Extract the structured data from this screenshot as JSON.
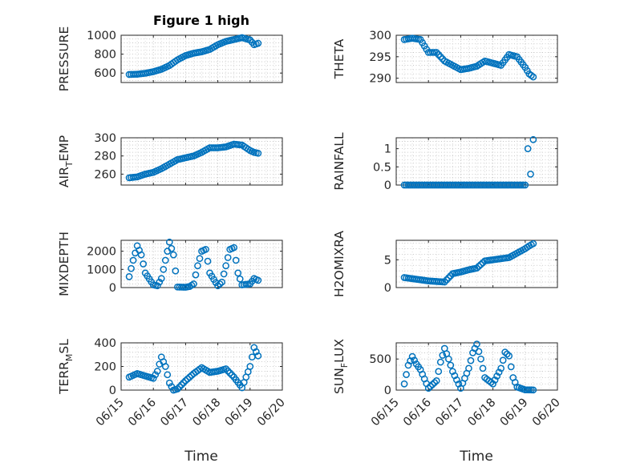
{
  "title": "Figure 1 high",
  "xlabel": "Time",
  "x_tick_labels": [
    "06/15",
    "06/16",
    "06/17",
    "06/18",
    "06/19",
    "06/20"
  ],
  "colors": {
    "marker": "#0072BD",
    "axes": "#262626",
    "grid": "#bcbcbc"
  },
  "chart_data": [
    {
      "type": "scatter",
      "ylabel": "PRESSURE",
      "xlim": [
        "06/15",
        "06/20"
      ],
      "ylim": [
        500,
        1000
      ],
      "yticks": [
        600,
        800,
        1000
      ],
      "grid": true,
      "points": [
        [
          "06/15 06:00",
          585
        ],
        [
          "06/15 12:00",
          588
        ],
        [
          "06/15 18:00",
          598
        ],
        [
          "06/16 00:00",
          615
        ],
        [
          "06/16 06:00",
          640
        ],
        [
          "06/16 12:00",
          680
        ],
        [
          "06/16 18:00",
          740
        ],
        [
          "06/17 00:00",
          785
        ],
        [
          "06/17 06:00",
          810
        ],
        [
          "06/17 12:00",
          825
        ],
        [
          "06/17 18:00",
          850
        ],
        [
          "06/18 00:00",
          900
        ],
        [
          "06/18 06:00",
          935
        ],
        [
          "06/18 12:00",
          955
        ],
        [
          "06/18 18:00",
          975
        ],
        [
          "06/19 00:00",
          950
        ],
        [
          "06/19 03:00",
          900
        ],
        [
          "06/19 06:00",
          915
        ]
      ]
    },
    {
      "type": "scatter",
      "ylabel": "THETA",
      "xlim": [
        "06/15",
        "06/20"
      ],
      "ylim": [
        289,
        300
      ],
      "yticks": [
        290,
        295,
        300
      ],
      "grid": true,
      "points": [
        [
          "06/15 06:00",
          299.0
        ],
        [
          "06/15 12:00",
          299.3
        ],
        [
          "06/15 18:00",
          299.0
        ],
        [
          "06/16 00:00",
          296.0
        ],
        [
          "06/16 06:00",
          296.0
        ],
        [
          "06/16 12:00",
          294.0
        ],
        [
          "06/16 18:00",
          293.0
        ],
        [
          "06/17 00:00",
          292.0
        ],
        [
          "06/17 06:00",
          292.3
        ],
        [
          "06/17 12:00",
          292.8
        ],
        [
          "06/17 18:00",
          294.0
        ],
        [
          "06/18 00:00",
          293.5
        ],
        [
          "06/18 06:00",
          293.0
        ],
        [
          "06/18 12:00",
          295.5
        ],
        [
          "06/18 18:00",
          295.0
        ],
        [
          "06/19 00:00",
          292.5
        ],
        [
          "06/19 03:00",
          291.0
        ],
        [
          "06/19 06:00",
          290.3
        ]
      ]
    },
    {
      "type": "scatter",
      "ylabel": "AIR_TEMP",
      "xlim": [
        "06/15",
        "06/20"
      ],
      "ylim": [
        248,
        300
      ],
      "yticks": [
        260,
        280,
        300
      ],
      "grid": true,
      "points": [
        [
          "06/15 06:00",
          256
        ],
        [
          "06/15 12:00",
          257
        ],
        [
          "06/15 18:00",
          260
        ],
        [
          "06/16 00:00",
          262
        ],
        [
          "06/16 06:00",
          266
        ],
        [
          "06/16 12:00",
          271
        ],
        [
          "06/16 18:00",
          276
        ],
        [
          "06/17 00:00",
          278
        ],
        [
          "06/17 06:00",
          280
        ],
        [
          "06/17 12:00",
          284
        ],
        [
          "06/17 18:00",
          289
        ],
        [
          "06/18 00:00",
          289
        ],
        [
          "06/18 06:00",
          290
        ],
        [
          "06/18 12:00",
          293
        ],
        [
          "06/18 18:00",
          292
        ],
        [
          "06/19 00:00",
          286
        ],
        [
          "06/19 03:00",
          284
        ],
        [
          "06/19 06:00",
          283
        ]
      ]
    },
    {
      "type": "scatter",
      "ylabel": "RAINFALL",
      "xlim": [
        "06/15",
        "06/20"
      ],
      "ylim": [
        0,
        1.3
      ],
      "yticks": [
        0,
        0.5,
        1
      ],
      "grid": true,
      "points": [
        [
          "06/15 06:00",
          0
        ],
        [
          "06/15 12:00",
          0
        ],
        [
          "06/16 00:00",
          0
        ],
        [
          "06/16 12:00",
          0
        ],
        [
          "06/17 00:00",
          0
        ],
        [
          "06/17 12:00",
          0
        ],
        [
          "06/18 00:00",
          0
        ],
        [
          "06/18 12:00",
          0
        ],
        [
          "06/19 00:00",
          0
        ],
        [
          "06/19 02:00",
          1.0
        ],
        [
          "06/19 04:00",
          0.3
        ],
        [
          "06/19 06:00",
          1.25
        ]
      ]
    },
    {
      "type": "scatter",
      "ylabel": "MIXDEPTH",
      "xlim": [
        "06/15",
        "06/20"
      ],
      "ylim": [
        0,
        2600
      ],
      "yticks": [
        0,
        1000,
        2000
      ],
      "grid": true,
      "points": [
        [
          "06/15 06:00",
          600
        ],
        [
          "06/15 09:00",
          1500
        ],
        [
          "06/15 12:00",
          2300
        ],
        [
          "06/15 15:00",
          1800
        ],
        [
          "06/15 18:00",
          800
        ],
        [
          "06/16 00:00",
          150
        ],
        [
          "06/16 03:00",
          100
        ],
        [
          "06/16 06:00",
          500
        ],
        [
          "06/16 09:00",
          1500
        ],
        [
          "06/16 12:00",
          2500
        ],
        [
          "06/16 15:00",
          1800
        ],
        [
          "06/16 18:00",
          30
        ],
        [
          "06/17 00:00",
          20
        ],
        [
          "06/17 03:00",
          60
        ],
        [
          "06/17 06:00",
          200
        ],
        [
          "06/17 09:00",
          1200
        ],
        [
          "06/17 12:00",
          2000
        ],
        [
          "06/17 15:00",
          2100
        ],
        [
          "06/17 18:00",
          800
        ],
        [
          "06/18 00:00",
          100
        ],
        [
          "06/18 03:00",
          300
        ],
        [
          "06/18 06:00",
          1200
        ],
        [
          "06/18 09:00",
          2100
        ],
        [
          "06/18 12:00",
          2200
        ],
        [
          "06/18 15:00",
          800
        ],
        [
          "06/18 18:00",
          150
        ],
        [
          "06/19 00:00",
          200
        ],
        [
          "06/19 03:00",
          500
        ],
        [
          "06/19 06:00",
          400
        ]
      ]
    },
    {
      "type": "scatter",
      "ylabel": "H2OMIXRA",
      "xlim": [
        "06/15",
        "06/20"
      ],
      "ylim": [
        0,
        8.5
      ],
      "yticks": [
        0,
        5
      ],
      "grid": true,
      "points": [
        [
          "06/15 06:00",
          1.8
        ],
        [
          "06/15 12:00",
          1.6
        ],
        [
          "06/15 18:00",
          1.4
        ],
        [
          "06/16 00:00",
          1.2
        ],
        [
          "06/16 06:00",
          1.1
        ],
        [
          "06/16 12:00",
          1.0
        ],
        [
          "06/16 18:00",
          2.5
        ],
        [
          "06/17 00:00",
          2.8
        ],
        [
          "06/17 06:00",
          3.2
        ],
        [
          "06/17 12:00",
          3.5
        ],
        [
          "06/17 18:00",
          4.8
        ],
        [
          "06/18 00:00",
          5.0
        ],
        [
          "06/18 06:00",
          5.2
        ],
        [
          "06/18 12:00",
          5.4
        ],
        [
          "06/18 18:00",
          6.2
        ],
        [
          "06/19 00:00",
          7.0
        ],
        [
          "06/19 03:00",
          7.5
        ],
        [
          "06/19 06:00",
          7.9
        ]
      ]
    },
    {
      "type": "scatter",
      "ylabel": "TERR_MSL",
      "xlim": [
        "06/15",
        "06/20"
      ],
      "ylim": [
        0,
        400
      ],
      "yticks": [
        0,
        200,
        400
      ],
      "grid": true,
      "points": [
        [
          "06/15 06:00",
          110
        ],
        [
          "06/15 12:00",
          140
        ],
        [
          "06/15 18:00",
          120
        ],
        [
          "06/16 00:00",
          100
        ],
        [
          "06/16 03:00",
          160
        ],
        [
          "06/16 06:00",
          280
        ],
        [
          "06/16 09:00",
          200
        ],
        [
          "06/16 12:00",
          60
        ],
        [
          "06/16 15:00",
          0
        ],
        [
          "06/16 18:00",
          10
        ],
        [
          "06/17 00:00",
          80
        ],
        [
          "06/17 06:00",
          140
        ],
        [
          "06/17 12:00",
          190
        ],
        [
          "06/17 18:00",
          150
        ],
        [
          "06/18 00:00",
          160
        ],
        [
          "06/18 06:00",
          180
        ],
        [
          "06/18 12:00",
          110
        ],
        [
          "06/18 18:00",
          20
        ],
        [
          "06/19 00:00",
          200
        ],
        [
          "06/19 03:00",
          360
        ],
        [
          "06/19 06:00",
          290
        ]
      ]
    },
    {
      "type": "scatter",
      "ylabel": "SUN_FLUX",
      "xlim": [
        "06/15",
        "06/20"
      ],
      "ylim": [
        0,
        760
      ],
      "yticks": [
        0,
        500
      ],
      "grid": true,
      "points": [
        [
          "06/15 06:00",
          100
        ],
        [
          "06/15 09:00",
          400
        ],
        [
          "06/15 12:00",
          540
        ],
        [
          "06/15 15:00",
          420
        ],
        [
          "06/15 18:00",
          330
        ],
        [
          "06/16 00:00",
          30
        ],
        [
          "06/16 06:00",
          150
        ],
        [
          "06/16 09:00",
          450
        ],
        [
          "06/16 12:00",
          670
        ],
        [
          "06/16 15:00",
          500
        ],
        [
          "06/16 18:00",
          300
        ],
        [
          "06/17 00:00",
          30
        ],
        [
          "06/17 06:00",
          350
        ],
        [
          "06/17 09:00",
          600
        ],
        [
          "06/17 12:00",
          740
        ],
        [
          "06/17 15:00",
          500
        ],
        [
          "06/17 18:00",
          200
        ],
        [
          "06/18 00:00",
          100
        ],
        [
          "06/18 06:00",
          350
        ],
        [
          "06/18 09:00",
          610
        ],
        [
          "06/18 12:00",
          550
        ],
        [
          "06/18 15:00",
          200
        ],
        [
          "06/18 18:00",
          50
        ],
        [
          "06/19 00:00",
          5
        ],
        [
          "06/19 06:00",
          2
        ]
      ]
    }
  ]
}
